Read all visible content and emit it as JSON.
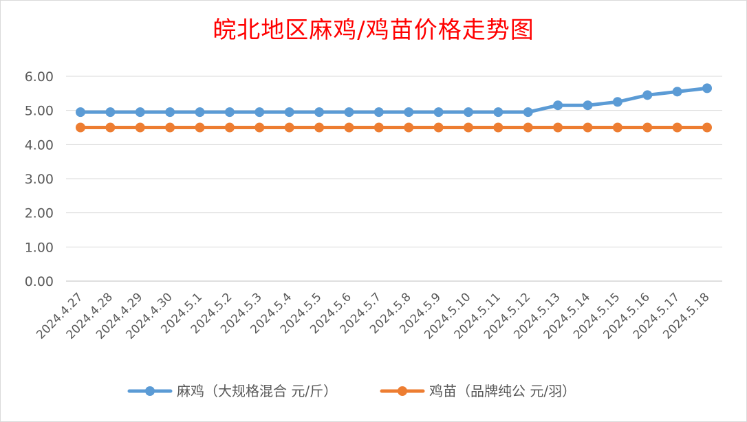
{
  "chart_data": {
    "type": "line",
    "title": "皖北地区麻鸡/鸡苗价格走势图",
    "categories": [
      "2024.4.27",
      "2024.4.28",
      "2024.4.29",
      "2024.4.30",
      "2024.5.1",
      "2024.5.2",
      "2024.5.3",
      "2024.5.4",
      "2024.5.5",
      "2024.5.6",
      "2024.5.7",
      "2024.5.8",
      "2024.5.9",
      "2024.5.10",
      "2024.5.11",
      "2024.5.12",
      "2024.5.13",
      "2024.5.14",
      "2024.5.15",
      "2024.5.16",
      "2024.5.17",
      "2024.5.18"
    ],
    "series": [
      {
        "name": "麻鸡（大规格混合 元/斤）",
        "color": "#5b9bd5",
        "values": [
          4.95,
          4.95,
          4.95,
          4.95,
          4.95,
          4.95,
          4.95,
          4.95,
          4.95,
          4.95,
          4.95,
          4.95,
          4.95,
          4.95,
          4.95,
          4.95,
          5.15,
          5.15,
          5.25,
          5.45,
          5.55,
          5.65
        ]
      },
      {
        "name": "鸡苗（品牌纯公 元/羽）",
        "color": "#ed7d31",
        "values": [
          4.5,
          4.5,
          4.5,
          4.5,
          4.5,
          4.5,
          4.5,
          4.5,
          4.5,
          4.5,
          4.5,
          4.5,
          4.5,
          4.5,
          4.5,
          4.5,
          4.5,
          4.5,
          4.5,
          4.5,
          4.5,
          4.5
        ]
      }
    ],
    "yticks": [
      "0.00",
      "1.00",
      "2.00",
      "3.00",
      "4.00",
      "5.00",
      "6.00"
    ],
    "ylim": [
      0,
      6
    ],
    "grid": true,
    "legend_position": "bottom",
    "xlabel": "",
    "ylabel": ""
  }
}
